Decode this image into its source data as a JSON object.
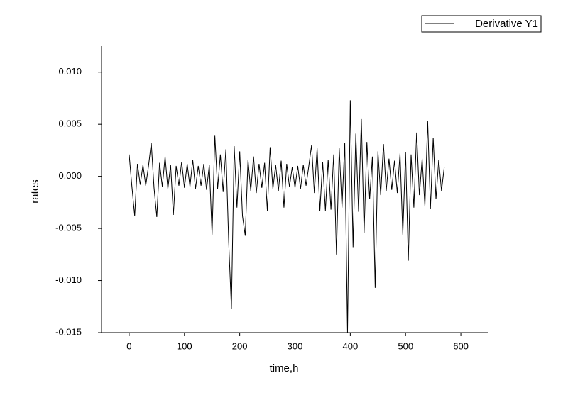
{
  "chart_data": {
    "type": "line",
    "x_label": "time,h",
    "y_label": "rates",
    "xlim": [
      -50,
      650
    ],
    "xticks": [
      0,
      100,
      200,
      300,
      400,
      500,
      600
    ],
    "ylim": [
      -0.015,
      0.0125
    ],
    "yticks": [
      {
        "value": -0.015,
        "label": "-0.015"
      },
      {
        "value": -0.01,
        "label": "-0.010"
      },
      {
        "value": -0.005,
        "label": "-0.005"
      },
      {
        "value": 0,
        "label": "0.000"
      },
      {
        "value": 0.005,
        "label": "0.005"
      },
      {
        "value": 0.01,
        "label": "0.010"
      }
    ],
    "legend": "top-right",
    "x": [
      0,
      5,
      10,
      15,
      20,
      25,
      30,
      35,
      40,
      45,
      50,
      55,
      60,
      65,
      70,
      75,
      80,
      85,
      90,
      95,
      100,
      105,
      110,
      115,
      120,
      125,
      130,
      135,
      140,
      145,
      150,
      155,
      160,
      165,
      170,
      175,
      180,
      185,
      190,
      195,
      200,
      205,
      210,
      215,
      220,
      225,
      230,
      235,
      240,
      245,
      250,
      255,
      260,
      265,
      270,
      275,
      280,
      285,
      290,
      295,
      300,
      305,
      310,
      315,
      320,
      325,
      330,
      335,
      340,
      345,
      350,
      355,
      360,
      365,
      370,
      375,
      380,
      385,
      390,
      395,
      400,
      405,
      410,
      415,
      420,
      425,
      430,
      435,
      440,
      445,
      450,
      455,
      460,
      465,
      470,
      475,
      480,
      485,
      490,
      495,
      500,
      505,
      510,
      515,
      520,
      525,
      530,
      535,
      540,
      545,
      550,
      555,
      560,
      565,
      570
    ],
    "series": [
      {
        "name": "Derivative Y1",
        "color": "#000000",
        "values": [
          0.0021,
          -0.001,
          -0.0038,
          0.0012,
          -0.0008,
          0.0011,
          -0.0009,
          0.001,
          0.0032,
          -0.0011,
          -0.0039,
          0.0013,
          -0.001,
          0.0019,
          -0.0012,
          0.0011,
          -0.0037,
          0.001,
          -0.0009,
          0.0014,
          -0.0011,
          0.0012,
          -0.001,
          0.0016,
          -0.0012,
          0.001,
          -0.0009,
          0.0012,
          -0.0013,
          0.0011,
          -0.0056,
          0.0039,
          -0.0012,
          0.0021,
          -0.0015,
          0.0026,
          -0.0062,
          -0.0127,
          0.0029,
          -0.003,
          0.0024,
          -0.0038,
          -0.0057,
          0.0016,
          -0.0014,
          0.0019,
          -0.0016,
          0.0012,
          -0.0011,
          0.0013,
          -0.0033,
          0.0028,
          -0.0012,
          0.0011,
          -0.0014,
          0.0015,
          -0.003,
          0.0012,
          -0.001,
          0.0009,
          -0.0011,
          0.001,
          -0.0012,
          0.0011,
          -0.0009,
          0.001,
          0.003,
          -0.0016,
          0.0027,
          -0.0033,
          0.0014,
          -0.0033,
          0.0016,
          -0.0032,
          0.0021,
          -0.0075,
          0.0027,
          -0.003,
          0.0032,
          -0.015,
          0.0073,
          -0.0068,
          0.0041,
          -0.0034,
          0.0055,
          -0.0054,
          0.0033,
          -0.0022,
          0.0019,
          -0.0107,
          0.0024,
          -0.0018,
          0.0031,
          -0.0014,
          0.0017,
          -0.0013,
          0.0015,
          -0.0016,
          0.0022,
          -0.0056,
          0.0023,
          -0.0081,
          0.0021,
          -0.003,
          0.0042,
          -0.0018,
          0.0017,
          -0.0029,
          0.0053,
          -0.0031,
          0.0037,
          -0.0022,
          0.0016,
          -0.0014,
          0.0009
        ]
      }
    ]
  }
}
